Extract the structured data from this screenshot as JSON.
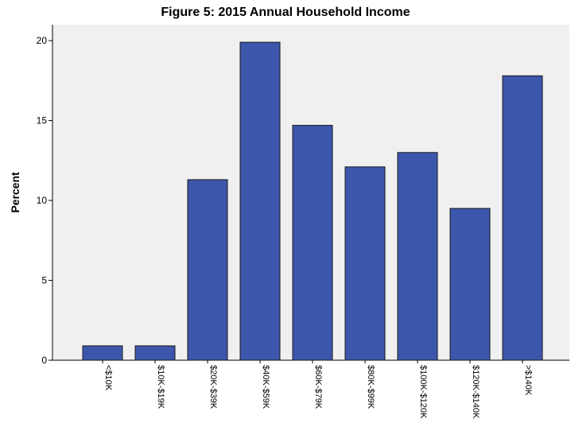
{
  "chart_data": {
    "type": "bar",
    "title": "Figure 5: 2015 Annual Household Income",
    "xlabel": "",
    "ylabel": "Percent",
    "ylim": [
      0,
      21
    ],
    "yticks": [
      0,
      5,
      10,
      15,
      20
    ],
    "categories": [
      "<$10K",
      "$10K-$19K",
      "$20K-$39K",
      "$40K-$59K",
      "$60K-$79K",
      "$80K-$99K",
      "$100K-$120K",
      "$120K-$140K",
      ">$140K"
    ],
    "values": [
      0.9,
      0.9,
      11.3,
      19.9,
      14.7,
      12.1,
      13.0,
      9.5,
      17.8
    ],
    "colors": {
      "bar": "#3c56ac",
      "plot_bg": "#f0f0f0",
      "axis": "#000000",
      "bar_edge": "#1a1a1a"
    },
    "grid": false,
    "legend": "none"
  }
}
